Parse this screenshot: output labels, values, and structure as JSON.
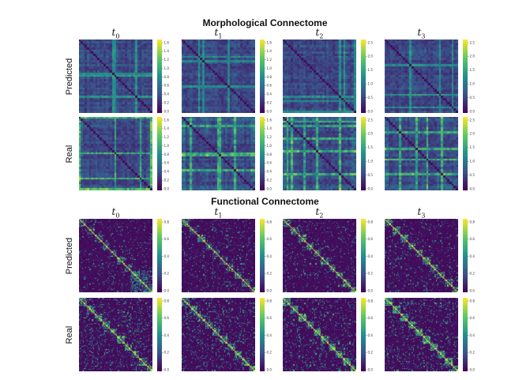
{
  "figure": {
    "sections": [
      {
        "id": "morphological",
        "title": "Morphological Connectome",
        "kind": "morph",
        "matrix_size": 35,
        "time_points": [
          {
            "letter": "t",
            "sub": "0"
          },
          {
            "letter": "t",
            "sub": "1"
          },
          {
            "letter": "t",
            "sub": "2"
          },
          {
            "letter": "t",
            "sub": "3"
          }
        ],
        "rows": [
          {
            "label": "Predicted",
            "colorbar_ticks": [
              [
                "0.0",
                "0.2",
                "0.4",
                "0.6",
                "0.8",
                "1.0",
                "1.2",
                "1.4",
                "1.6"
              ],
              [
                "0.0",
                "0.2",
                "0.4",
                "0.6",
                "0.8",
                "1.0",
                "1.2",
                "1.4",
                "1.6"
              ],
              [
                "0.0",
                "0.5",
                "1.0",
                "1.5",
                "2.0",
                "2.5"
              ],
              [
                "0.0",
                "0.5",
                "1.0",
                "1.5",
                "2.0",
                "2.5"
              ]
            ]
          },
          {
            "label": "Real",
            "colorbar_ticks": [
              [
                "0.0",
                "0.2",
                "0.4",
                "0.6",
                "0.8",
                "1.0",
                "1.2",
                "1.4",
                "1.6"
              ],
              [
                "0.0",
                "0.2",
                "0.4",
                "0.6",
                "0.8",
                "1.0",
                "1.2",
                "1.4",
                "1.6"
              ],
              [
                "0.0",
                "0.5",
                "1.0",
                "1.5",
                "2.0",
                "2.5"
              ],
              [
                "0.0",
                "0.5",
                "1.0",
                "1.5",
                "2.0",
                "2.5"
              ]
            ]
          }
        ]
      },
      {
        "id": "functional",
        "title": "Functional Connectome",
        "kind": "func",
        "matrix_size": 80,
        "time_points": [
          {
            "letter": "t",
            "sub": "0"
          },
          {
            "letter": "t",
            "sub": "1"
          },
          {
            "letter": "t",
            "sub": "2"
          },
          {
            "letter": "t",
            "sub": "3"
          }
        ],
        "rows": [
          {
            "label": "Predicted",
            "colorbar_ticks": [
              [
                "0.0",
                "0.2",
                "0.4",
                "0.6",
                "0.8"
              ],
              [
                "0.0",
                "0.2",
                "0.4",
                "0.6",
                "0.8"
              ],
              [
                "0.0",
                "0.2",
                "0.4",
                "0.6",
                "0.8"
              ],
              [
                "0.0",
                "0.2",
                "0.4",
                "0.6",
                "0.8"
              ]
            ]
          },
          {
            "label": "Real",
            "colorbar_ticks": [
              [
                "0.0",
                "0.2",
                "0.4",
                "0.6",
                "0.8"
              ],
              [
                "0.0",
                "0.2",
                "0.4",
                "0.6",
                "0.8"
              ],
              [
                "0.0",
                "0.2",
                "0.4",
                "0.6",
                "0.8"
              ],
              [
                "0.0",
                "0.2",
                "0.4",
                "0.6",
                "0.8"
              ]
            ]
          }
        ]
      }
    ]
  },
  "colormap": [
    "#440154",
    "#3b528b",
    "#21918c",
    "#5ec962",
    "#fde725"
  ],
  "chart_data": {
    "type": "heatmap",
    "title": "",
    "panels_grid": "2 sections x 2 rows x 4 time points",
    "colorscale": "viridis",
    "colorbar_ranges": {
      "morphological": [
        [
          0,
          1.6
        ],
        [
          0,
          1.6
        ],
        [
          0,
          2.5
        ],
        [
          0,
          2.5
        ]
      ],
      "functional": [
        [
          0,
          0.8
        ],
        [
          0,
          0.8
        ],
        [
          0,
          0.8
        ],
        [
          0,
          0.8
        ]
      ]
    }
  }
}
